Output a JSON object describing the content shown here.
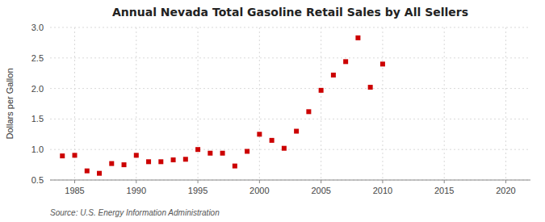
{
  "chart_data": {
    "type": "scatter",
    "title": "Annual Nevada Total Gasoline Retail Sales by All Sellers",
    "y_label": "Dollars per Gallon",
    "source": "Source: U.S. Energy Information Administration",
    "x": [
      1984,
      1985,
      1986,
      1987,
      1988,
      1989,
      1990,
      1991,
      1992,
      1993,
      1994,
      1995,
      1996,
      1997,
      1998,
      1999,
      2000,
      2001,
      2002,
      2003,
      2004,
      2005,
      2006,
      2007,
      2008,
      2009,
      2010
    ],
    "values": [
      0.895,
      0.905,
      0.65,
      0.61,
      0.77,
      0.75,
      0.905,
      0.8,
      0.8,
      0.83,
      0.84,
      1.0,
      0.94,
      0.94,
      0.73,
      0.97,
      1.25,
      1.15,
      1.02,
      1.3,
      1.62,
      1.97,
      2.22,
      2.44,
      2.83,
      2.02,
      2.4
    ],
    "color": "#cc0000",
    "marker": "square",
    "xlim": [
      1983,
      2022
    ],
    "ylim": [
      0.5,
      3.0
    ],
    "xticks": [
      1985,
      1990,
      1995,
      2000,
      2005,
      2010,
      2015,
      2020
    ],
    "yticks": [
      0.5,
      {
        "value": 1.0,
        "label": "1.0"
      },
      1.5,
      {
        "value": 2.0,
        "label": "2.0"
      },
      2.5,
      {
        "value": 3.0,
        "label": "3.0"
      }
    ],
    "grid": true
  }
}
